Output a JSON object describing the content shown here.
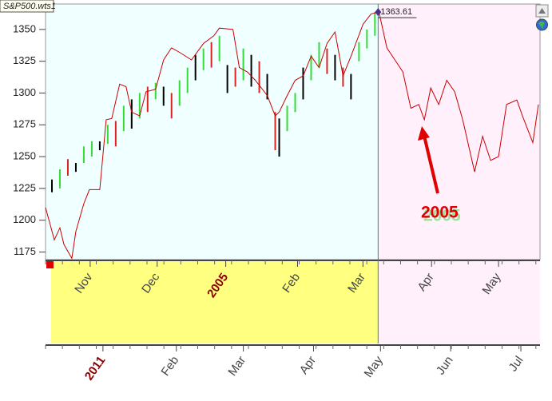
{
  "chart_data": {
    "type": "ohlc-overlay",
    "title": "S&P500.wts1",
    "last_value": 1363.61,
    "annotation": "2005",
    "xlim": [
      0,
      155
    ],
    "ylim": [
      1169,
      1370
    ],
    "yticks": [
      1175,
      1200,
      1225,
      1250,
      1275,
      1300,
      1325,
      1350
    ],
    "xticks": [
      {
        "value": 14,
        "label": "Nov"
      },
      {
        "value": 35,
        "label": "Dec"
      },
      {
        "value": 56.5,
        "label": "2005"
      },
      {
        "value": 79,
        "label": "Feb"
      },
      {
        "value": 99.5,
        "label": "Mar"
      },
      {
        "value": 121,
        "label": "Apr"
      },
      {
        "value": 142,
        "label": "May"
      }
    ],
    "x2ticks": [
      {
        "value": 18,
        "label": "2011"
      },
      {
        "value": 41,
        "label": "Feb"
      },
      {
        "value": 62,
        "label": "Mar"
      },
      {
        "value": 84,
        "label": "Apr"
      },
      {
        "value": 105,
        "label": "May"
      },
      {
        "value": 127,
        "label": "Jun"
      },
      {
        "value": 149,
        "label": "Jul"
      }
    ],
    "bars": {
      "x": [
        2,
        4.5,
        7,
        9.5,
        12,
        14.5,
        17,
        19.5,
        22,
        24.5,
        27,
        29.5,
        32,
        34.5,
        37,
        39.5,
        42,
        44.5,
        47,
        49.5,
        52,
        54.5,
        57,
        59.5,
        62,
        64.5,
        67,
        69.5,
        72,
        73.25,
        75.75,
        78.25,
        80.75,
        83.25,
        85.75,
        88.25,
        90.75,
        93.25,
        95.75,
        98.25,
        100.75,
        103.25
      ],
      "high": [
        1232,
        1240,
        1248,
        1245,
        1258,
        1262,
        1262,
        1275,
        1278,
        1290,
        1295,
        1300,
        1305,
        1308,
        1305,
        1300,
        1310,
        1320,
        1330,
        1335,
        1340,
        1345,
        1322,
        1320,
        1335,
        1330,
        1325,
        1315,
        1285,
        1280,
        1290,
        1300,
        1320,
        1330,
        1340,
        1335,
        1330,
        1320,
        1315,
        1340,
        1350,
        1363.61
      ],
      "low": [
        1222,
        1225,
        1235,
        1238,
        1245,
        1250,
        1255,
        1260,
        1258,
        1270,
        1272,
        1280,
        1285,
        1295,
        1290,
        1280,
        1290,
        1300,
        1310,
        1318,
        1320,
        1325,
        1300,
        1305,
        1310,
        1305,
        1300,
        1295,
        1255,
        1250,
        1270,
        1285,
        1295,
        1310,
        1320,
        1315,
        1310,
        1305,
        1295,
        1325,
        1335,
        1345
      ],
      "colors": [
        "#000000",
        "#33dd33",
        "#dd2222",
        "#000000",
        "#33dd33",
        "#33dd33",
        "#000000",
        "#33dd33",
        "#dd2222",
        "#33dd33",
        "#000000",
        "#33dd33",
        "#dd2222",
        "#33dd33",
        "#000000",
        "#dd2222",
        "#33dd33",
        "#33dd33",
        "#000000",
        "#33dd33",
        "#dd2222",
        "#33dd33",
        "#000000",
        "#dd2222",
        "#33dd33",
        "#000000",
        "#dd2222",
        "#000000",
        "#dd2222",
        "#000000",
        "#33dd33",
        "#33dd33",
        "#000000",
        "#33dd33",
        "#33dd33",
        "#dd2222",
        "#000000",
        "#dd2222",
        "#000000",
        "#33dd33",
        "#33dd33",
        "#33dd33"
      ]
    },
    "series": [
      {
        "color": "#cc0000",
        "x": [
          0,
          2.75,
          4.5,
          5.75,
          8.25,
          9.5,
          12,
          13.75,
          17,
          19,
          20.75,
          23.25,
          25.25,
          27,
          29.5,
          31.5,
          34.5,
          37,
          39.5,
          42,
          45.75,
          49.5,
          52.75,
          54.5,
          58.75,
          60.75,
          63.25,
          65.75,
          69.5,
          72,
          73.25,
          75.75,
          78.25,
          80.75,
          83.25,
          85.75,
          88.25,
          90.75,
          93.25,
          95.75,
          99.5,
          102,
          104.5,
          107,
          109.5,
          112,
          114.5,
          117,
          118.75,
          120.75,
          123.25,
          125.75,
          128.25,
          130.75,
          134.5,
          137,
          139.5,
          142,
          144.5,
          147.75,
          149.5,
          152.75,
          154.5
        ],
        "values": [
          1210,
          1184.5,
          1194,
          1181,
          1170,
          1191,
          1213,
          1224,
          1224,
          1279,
          1280,
          1307,
          1305,
          1285,
          1282,
          1301,
          1303,
          1326,
          1335.5,
          1332,
          1326,
          1339,
          1345,
          1351,
          1350,
          1320,
          1316.6,
          1310,
          1298,
          1282,
          1285,
          1298,
          1310,
          1313.5,
          1329,
          1320,
          1339,
          1348,
          1313.5,
          1329,
          1354,
          1362,
          1364,
          1335.5,
          1326,
          1316.6,
          1288,
          1291,
          1279,
          1304,
          1291,
          1310,
          1301,
          1279,
          1238,
          1266,
          1247,
          1250,
          1291,
          1294.5,
          1282,
          1261,
          1291
        ]
      }
    ]
  }
}
